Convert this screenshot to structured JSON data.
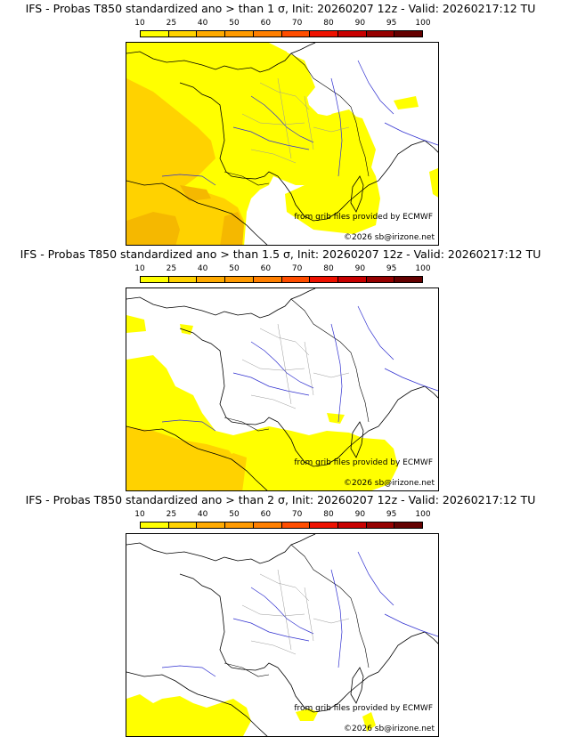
{
  "colorbar": {
    "labels": [
      "10",
      "25",
      "40",
      "50",
      "60",
      "70",
      "80",
      "90",
      "95",
      "100"
    ],
    "colors": [
      "#ffff00",
      "#ffd200",
      "#ffaa00",
      "#ff9a00",
      "#ff7f00",
      "#ff4d00",
      "#ee1100",
      "#c80000",
      "#960000",
      "#640000"
    ]
  },
  "fill_colors": {
    "low": "#ffff00",
    "mid": "#ffd200",
    "high": "#f5b800"
  },
  "panels": [
    {
      "title": "IFS - Probas T850  standardized ano > than 1 σ, Init: 20260207 12z - Valid: 20260217:12 TU",
      "source_text": "from grib files provided by ECMWF",
      "copyright_text": "©2026 sb@irizone.net"
    },
    {
      "title": "IFS - Probas T850  standardized ano > than 1.5 σ, Init: 20260207 12z - Valid: 20260217:12 TU",
      "source_text": "from grib files provided by ECMWF",
      "copyright_text": "©2026 sb@irizone.net"
    },
    {
      "title": "IFS - Probas T850  standardized ano > than 2 σ, Init: 20260207 12z - Valid: 20260217:12 TU",
      "source_text": "from grib files provided by ECMWF",
      "copyright_text": "©2026 sb@irizone.net"
    }
  ]
}
